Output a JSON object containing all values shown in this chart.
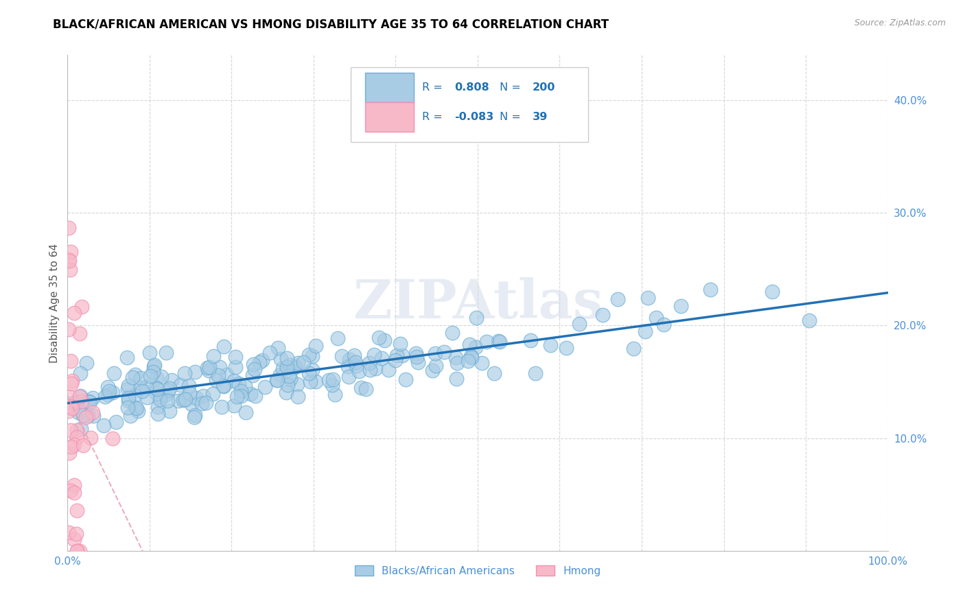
{
  "title": "BLACK/AFRICAN AMERICAN VS HMONG DISABILITY AGE 35 TO 64 CORRELATION CHART",
  "source": "Source: ZipAtlas.com",
  "ylabel": "Disability Age 35 to 64",
  "xlim": [
    0.0,
    1.0
  ],
  "ylim": [
    0.0,
    0.44
  ],
  "x_ticks": [
    0.0,
    0.1,
    0.2,
    0.3,
    0.4,
    0.5,
    0.6,
    0.7,
    0.8,
    0.9,
    1.0
  ],
  "x_tick_labels": [
    "0.0%",
    "",
    "",
    "",
    "",
    "",
    "",
    "",
    "",
    "",
    "100.0%"
  ],
  "y_ticks": [
    0.0,
    0.1,
    0.2,
    0.3,
    0.4
  ],
  "y_tick_labels": [
    "",
    "10.0%",
    "20.0%",
    "30.0%",
    "40.0%"
  ],
  "blue_R": 0.808,
  "blue_N": 200,
  "pink_R": -0.083,
  "pink_N": 39,
  "blue_scatter_color": "#a8cce4",
  "blue_edge_color": "#6baed6",
  "blue_line_color": "#2171b5",
  "pink_scatter_color": "#f7b8c8",
  "pink_edge_color": "#f48fb1",
  "pink_line_color": "#e8a0b0",
  "tick_label_color": "#4a90d9",
  "watermark": "ZIPAtlas",
  "legend_label_blue": "Blacks/African Americans",
  "legend_label_pink": "Hmong",
  "blue_seed": 42,
  "pink_seed": 123
}
